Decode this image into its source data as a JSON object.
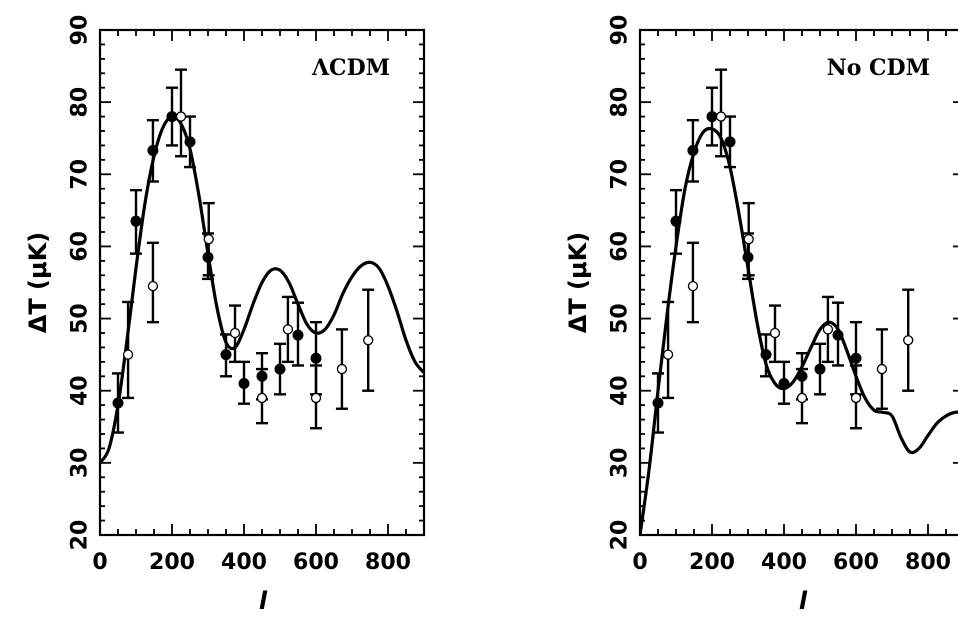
{
  "chart_data": [
    {
      "type": "scatter",
      "panel_label": "ΛCDM",
      "xlabel": "l",
      "ylabel": "ΔT (μK)",
      "xlim": [
        0,
        900
      ],
      "ylim": [
        20,
        90
      ],
      "xticks": [
        0,
        200,
        400,
        600,
        800
      ],
      "yticks": [
        20,
        30,
        40,
        50,
        60,
        70,
        80,
        90
      ],
      "series": [
        {
          "marker": "filled-circle",
          "points": [
            {
              "x": 50,
              "y": 38.3,
              "err": [
                34.2,
                42.4
              ]
            },
            {
              "x": 100,
              "y": 63.5,
              "err": [
                59.0,
                67.8
              ]
            },
            {
              "x": 147,
              "y": 73.3,
              "err": [
                69.0,
                77.5
              ]
            },
            {
              "x": 200,
              "y": 78.0,
              "err": [
                74.0,
                82.0
              ]
            },
            {
              "x": 250,
              "y": 74.5,
              "err": [
                71.0,
                78.0
              ]
            },
            {
              "x": 300,
              "y": 58.5,
              "err": [
                55.5,
                61.8
              ]
            },
            {
              "x": 350,
              "y": 45.0,
              "err": [
                42.0,
                47.8
              ]
            },
            {
              "x": 400,
              "y": 41.0,
              "err": [
                38.2,
                44.0
              ]
            },
            {
              "x": 450,
              "y": 42.0,
              "err": [
                38.8,
                45.2
              ]
            },
            {
              "x": 500,
              "y": 43.0,
              "err": [
                39.5,
                46.5
              ]
            },
            {
              "x": 550,
              "y": 47.7,
              "err": [
                43.5,
                52.2
              ]
            },
            {
              "x": 600,
              "y": 44.5,
              "err": [
                39.5,
                49.5
              ]
            }
          ]
        },
        {
          "marker": "open-circle",
          "points": [
            {
              "x": 78,
              "y": 45.0,
              "err": [
                39.0,
                52.3
              ]
            },
            {
              "x": 147,
              "y": 54.5,
              "err": [
                49.5,
                60.5
              ]
            },
            {
              "x": 225,
              "y": 78.0,
              "err": [
                72.5,
                84.5
              ]
            },
            {
              "x": 302,
              "y": 61.0,
              "err": [
                56.0,
                66.0
              ]
            },
            {
              "x": 375,
              "y": 48.0,
              "err": [
                44.0,
                51.8
              ]
            },
            {
              "x": 450,
              "y": 39.0,
              "err": [
                35.5,
                43.0
              ]
            },
            {
              "x": 522,
              "y": 48.5,
              "err": [
                44.0,
                53.0
              ]
            },
            {
              "x": 600,
              "y": 39.0,
              "err": [
                34.8,
                43.5
              ]
            },
            {
              "x": 672,
              "y": 43.0,
              "err": [
                37.5,
                48.5
              ]
            },
            {
              "x": 745,
              "y": 47.0,
              "err": [
                40.0,
                54.0
              ]
            }
          ]
        },
        {
          "type": "line",
          "x": [
            0,
            25,
            50,
            75,
            100,
            125,
            150,
            175,
            200,
            225,
            250,
            275,
            300,
            325,
            350,
            375,
            400,
            425,
            450,
            475,
            500,
            525,
            550,
            575,
            600,
            625,
            650,
            675,
            700,
            725,
            750,
            775,
            800,
            825,
            850,
            875,
            900
          ],
          "y": [
            30.0,
            32.0,
            38.0,
            47.0,
            57.0,
            66.0,
            72.5,
            76.5,
            78.0,
            77.0,
            73.5,
            67.0,
            59.0,
            51.5,
            46.7,
            46.0,
            48.5,
            52.0,
            55.0,
            56.7,
            56.7,
            55.0,
            52.0,
            49.2,
            48.0,
            48.5,
            50.5,
            53.5,
            55.8,
            57.3,
            57.8,
            57.0,
            54.5,
            51.0,
            47.0,
            44.0,
            42.5
          ]
        }
      ]
    },
    {
      "type": "scatter",
      "panel_label": "No CDM",
      "xlabel": "l",
      "ylabel": "ΔT (μK)",
      "xlim": [
        0,
        900
      ],
      "ylim": [
        20,
        90
      ],
      "xticks": [
        0,
        200,
        400,
        600,
        800
      ],
      "yticks": [
        20,
        30,
        40,
        50,
        60,
        70,
        80,
        90
      ],
      "series": [
        {
          "marker": "filled-circle",
          "points": [
            {
              "x": 50,
              "y": 38.3,
              "err": [
                34.2,
                42.4
              ]
            },
            {
              "x": 100,
              "y": 63.5,
              "err": [
                59.0,
                67.8
              ]
            },
            {
              "x": 147,
              "y": 73.3,
              "err": [
                69.0,
                77.5
              ]
            },
            {
              "x": 200,
              "y": 78.0,
              "err": [
                74.0,
                82.0
              ]
            },
            {
              "x": 250,
              "y": 74.5,
              "err": [
                71.0,
                78.0
              ]
            },
            {
              "x": 300,
              "y": 58.5,
              "err": [
                55.5,
                61.8
              ]
            },
            {
              "x": 350,
              "y": 45.0,
              "err": [
                42.0,
                47.8
              ]
            },
            {
              "x": 400,
              "y": 41.0,
              "err": [
                38.2,
                44.0
              ]
            },
            {
              "x": 450,
              "y": 42.0,
              "err": [
                38.8,
                45.2
              ]
            },
            {
              "x": 500,
              "y": 43.0,
              "err": [
                39.5,
                46.5
              ]
            },
            {
              "x": 550,
              "y": 47.7,
              "err": [
                43.5,
                52.2
              ]
            },
            {
              "x": 600,
              "y": 44.5,
              "err": [
                39.5,
                49.5
              ]
            }
          ]
        },
        {
          "marker": "open-circle",
          "points": [
            {
              "x": 78,
              "y": 45.0,
              "err": [
                39.0,
                52.3
              ]
            },
            {
              "x": 147,
              "y": 54.5,
              "err": [
                49.5,
                60.5
              ]
            },
            {
              "x": 225,
              "y": 78.0,
              "err": [
                72.5,
                84.5
              ]
            },
            {
              "x": 302,
              "y": 61.0,
              "err": [
                56.0,
                66.0
              ]
            },
            {
              "x": 375,
              "y": 48.0,
              "err": [
                44.0,
                51.8
              ]
            },
            {
              "x": 450,
              "y": 39.0,
              "err": [
                35.5,
                43.0
              ]
            },
            {
              "x": 522,
              "y": 48.5,
              "err": [
                44.0,
                53.0
              ]
            },
            {
              "x": 600,
              "y": 39.0,
              "err": [
                34.8,
                43.5
              ]
            },
            {
              "x": 672,
              "y": 43.0,
              "err": [
                37.5,
                48.5
              ]
            },
            {
              "x": 745,
              "y": 47.0,
              "err": [
                40.0,
                54.0
              ]
            }
          ]
        },
        {
          "type": "line",
          "x": [
            0,
            25,
            50,
            75,
            100,
            125,
            150,
            175,
            200,
            225,
            250,
            275,
            300,
            325,
            350,
            375,
            400,
            425,
            450,
            475,
            500,
            525,
            550,
            575,
            600,
            625,
            650,
            675,
            700,
            725,
            750,
            775,
            800,
            825,
            850,
            875,
            900
          ],
          "y": [
            20.0,
            29.0,
            40.0,
            50.5,
            60.0,
            68.0,
            73.0,
            75.8,
            76.3,
            75.0,
            71.0,
            64.5,
            57.0,
            49.5,
            43.7,
            41.0,
            40.3,
            41.2,
            43.3,
            46.0,
            48.5,
            49.5,
            48.5,
            45.5,
            42.0,
            39.0,
            37.3,
            37.0,
            36.5,
            33.5,
            31.5,
            32.0,
            33.8,
            35.5,
            36.5,
            37.0,
            37.0
          ]
        }
      ]
    }
  ]
}
